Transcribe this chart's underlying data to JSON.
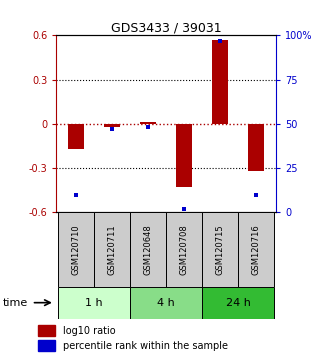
{
  "title": "GDS3433 / 39031",
  "samples": [
    "GSM120710",
    "GSM120711",
    "GSM120648",
    "GSM120708",
    "GSM120715",
    "GSM120716"
  ],
  "log10_ratio": [
    -0.17,
    -0.02,
    0.01,
    -0.43,
    0.57,
    -0.32
  ],
  "percentile_rank": [
    10,
    47,
    48,
    2,
    97,
    10
  ],
  "ylim_left": [
    -0.6,
    0.6
  ],
  "ylim_right": [
    0,
    100
  ],
  "yticks_left": [
    -0.6,
    -0.3,
    0.0,
    0.3,
    0.6
  ],
  "ytick_labels_left": [
    "-0.6",
    "-0.3",
    "0",
    "0.3",
    "0.6"
  ],
  "yticks_right": [
    0,
    25,
    50,
    75,
    100
  ],
  "ytick_labels_right": [
    "0",
    "25",
    "50",
    "75",
    "100%"
  ],
  "bar_color": "#aa0000",
  "dot_color": "#0000cc",
  "time_groups": [
    {
      "label": "1 h",
      "samples": [
        0,
        1
      ],
      "color": "#ccffcc"
    },
    {
      "label": "4 h",
      "samples": [
        2,
        3
      ],
      "color": "#88dd88"
    },
    {
      "label": "24 h",
      "samples": [
        4,
        5
      ],
      "color": "#33bb33"
    }
  ],
  "time_label": "time",
  "legend_bar_label": "log10 ratio",
  "legend_dot_label": "percentile rank within the sample",
  "background_color": "#ffffff",
  "bar_width": 0.45
}
